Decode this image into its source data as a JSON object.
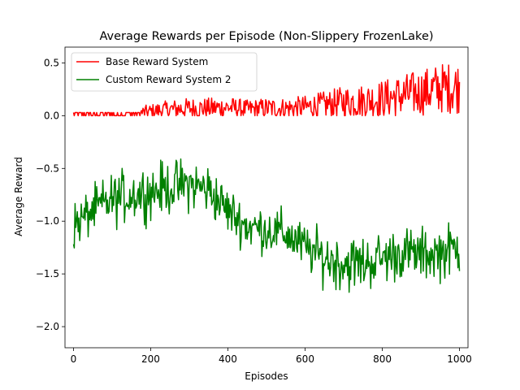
{
  "chart_data": {
    "type": "line",
    "title": "Average Rewards per Episode (Non-Slippery FrozenLake)",
    "xlabel": "Episodes",
    "ylabel": "Average Reward",
    "xlim": [
      -22,
      1022
    ],
    "ylim": [
      -2.2,
      0.65
    ],
    "xticks": [
      0,
      200,
      400,
      600,
      800,
      1000
    ],
    "yticks": [
      -2.0,
      -1.5,
      -1.0,
      -0.5,
      0.0,
      0.5
    ],
    "xtick_labels": [
      "0",
      "200",
      "400",
      "600",
      "800",
      "1000"
    ],
    "ytick_labels": [
      "−2.0",
      "−1.5",
      "−1.0",
      "−0.5",
      "0.0",
      "0.5"
    ],
    "grid": false,
    "legend_position": "upper-left",
    "series": [
      {
        "name": "Base Reward System",
        "color": "#ff0000",
        "x": [
          0,
          50,
          100,
          150,
          200,
          250,
          300,
          350,
          400,
          450,
          500,
          550,
          600,
          650,
          700,
          750,
          800,
          850,
          900,
          950,
          1000
        ],
        "y": [
          0.01,
          0.01,
          0.01,
          0.02,
          0.04,
          0.06,
          0.07,
          0.07,
          0.08,
          0.06,
          0.07,
          0.07,
          0.08,
          0.1,
          0.13,
          0.14,
          0.16,
          0.19,
          0.22,
          0.26,
          0.27
        ],
        "band": [
          0.02,
          0.02,
          0.02,
          0.05,
          0.07,
          0.09,
          0.1,
          0.1,
          0.1,
          0.09,
          0.1,
          0.1,
          0.11,
          0.13,
          0.15,
          0.16,
          0.18,
          0.2,
          0.22,
          0.24,
          0.25
        ]
      },
      {
        "name": "Custom Reward System 2",
        "color": "#008000",
        "x": [
          0,
          50,
          100,
          150,
          200,
          250,
          300,
          350,
          400,
          450,
          500,
          550,
          600,
          650,
          700,
          750,
          800,
          850,
          900,
          950,
          1000
        ],
        "y": [
          -1.05,
          -0.9,
          -0.8,
          -0.75,
          -0.72,
          -0.68,
          -0.65,
          -0.7,
          -0.9,
          -1.05,
          -1.08,
          -1.12,
          -1.25,
          -1.35,
          -1.4,
          -1.4,
          -1.35,
          -1.3,
          -1.32,
          -1.3,
          -1.25
        ],
        "band": [
          0.25,
          0.25,
          0.28,
          0.28,
          0.28,
          0.28,
          0.28,
          0.28,
          0.25,
          0.25,
          0.25,
          0.25,
          0.25,
          0.28,
          0.3,
          0.3,
          0.28,
          0.28,
          0.28,
          0.28,
          0.28
        ]
      }
    ]
  }
}
